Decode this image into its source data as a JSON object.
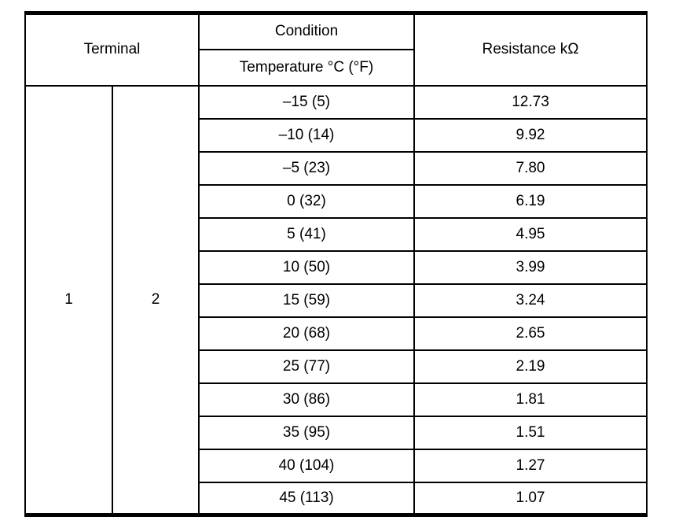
{
  "table": {
    "headers": {
      "terminal": "Terminal",
      "condition": "Condition",
      "temperature": "Temperature °C (°F)",
      "resistance": "Resistance kΩ"
    },
    "terminals": [
      "1",
      "2"
    ],
    "rows": [
      {
        "temperature": "–15 (5)",
        "resistance": "12.73"
      },
      {
        "temperature": "–10 (14)",
        "resistance": "9.92"
      },
      {
        "temperature": "–5 (23)",
        "resistance": "7.80"
      },
      {
        "temperature": "0 (32)",
        "resistance": "6.19"
      },
      {
        "temperature": "5 (41)",
        "resistance": "4.95"
      },
      {
        "temperature": "10 (50)",
        "resistance": "3.99"
      },
      {
        "temperature": "15 (59)",
        "resistance": "3.24"
      },
      {
        "temperature": "20 (68)",
        "resistance": "2.65"
      },
      {
        "temperature": "25 (77)",
        "resistance": "2.19"
      },
      {
        "temperature": "30 (86)",
        "resistance": "1.81"
      },
      {
        "temperature": "35 (95)",
        "resistance": "1.51"
      },
      {
        "temperature": "40 (104)",
        "resistance": "1.27"
      },
      {
        "temperature": "45 (113)",
        "resistance": "1.07"
      }
    ]
  }
}
